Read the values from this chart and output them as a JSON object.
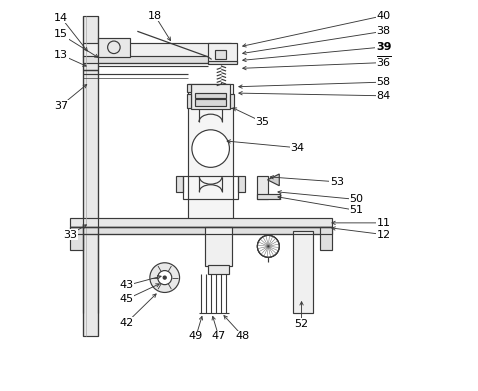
{
  "bg": "#ffffff",
  "lc": "#3a3a3a",
  "lw": 0.85,
  "fw": 4.78,
  "fh": 3.91,
  "dpi": 100,
  "annotations": [
    [
      "14",
      [
        0.118,
        0.862
      ],
      [
        0.045,
        0.955
      ]
    ],
    [
      "15",
      [
        0.148,
        0.848
      ],
      [
        0.045,
        0.912
      ]
    ],
    [
      "13",
      [
        0.118,
        0.827
      ],
      [
        0.045,
        0.86
      ]
    ],
    [
      "37",
      [
        0.118,
        0.79
      ],
      [
        0.045,
        0.73
      ]
    ],
    [
      "18",
      [
        0.33,
        0.888
      ],
      [
        0.285,
        0.96
      ]
    ],
    [
      "40",
      [
        0.5,
        0.88
      ],
      [
        0.87,
        0.96
      ]
    ],
    [
      "38",
      [
        0.5,
        0.862
      ],
      [
        0.87,
        0.92
      ]
    ],
    [
      "39",
      [
        0.5,
        0.845
      ],
      [
        0.87,
        0.88
      ]
    ],
    [
      "36",
      [
        0.5,
        0.825
      ],
      [
        0.87,
        0.84
      ]
    ],
    [
      "58",
      [
        0.49,
        0.778
      ],
      [
        0.87,
        0.79
      ]
    ],
    [
      "84",
      [
        0.49,
        0.762
      ],
      [
        0.87,
        0.755
      ]
    ],
    [
      "35",
      [
        0.476,
        0.728
      ],
      [
        0.56,
        0.688
      ]
    ],
    [
      "34",
      [
        0.46,
        0.64
      ],
      [
        0.65,
        0.622
      ]
    ],
    [
      "53",
      [
        0.57,
        0.548
      ],
      [
        0.75,
        0.535
      ]
    ],
    [
      "50",
      [
        0.59,
        0.51
      ],
      [
        0.8,
        0.49
      ]
    ],
    [
      "51",
      [
        0.59,
        0.498
      ],
      [
        0.8,
        0.462
      ]
    ],
    [
      "11",
      [
        0.728,
        0.43
      ],
      [
        0.87,
        0.43
      ]
    ],
    [
      "12",
      [
        0.728,
        0.418
      ],
      [
        0.87,
        0.4
      ]
    ],
    [
      "33",
      [
        0.118,
        0.43
      ],
      [
        0.068,
        0.4
      ]
    ],
    [
      "43",
      [
        0.31,
        0.296
      ],
      [
        0.213,
        0.27
      ]
    ],
    [
      "45",
      [
        0.305,
        0.278
      ],
      [
        0.213,
        0.235
      ]
    ],
    [
      "42",
      [
        0.295,
        0.255
      ],
      [
        0.213,
        0.175
      ]
    ],
    [
      "49",
      [
        0.408,
        0.2
      ],
      [
        0.39,
        0.14
      ]
    ],
    [
      "47",
      [
        0.43,
        0.2
      ],
      [
        0.448,
        0.14
      ]
    ],
    [
      "48",
      [
        0.455,
        0.2
      ],
      [
        0.51,
        0.14
      ]
    ],
    [
      "52",
      [
        0.66,
        0.238
      ],
      [
        0.66,
        0.172
      ]
    ]
  ],
  "bold_underline": [
    "39"
  ]
}
